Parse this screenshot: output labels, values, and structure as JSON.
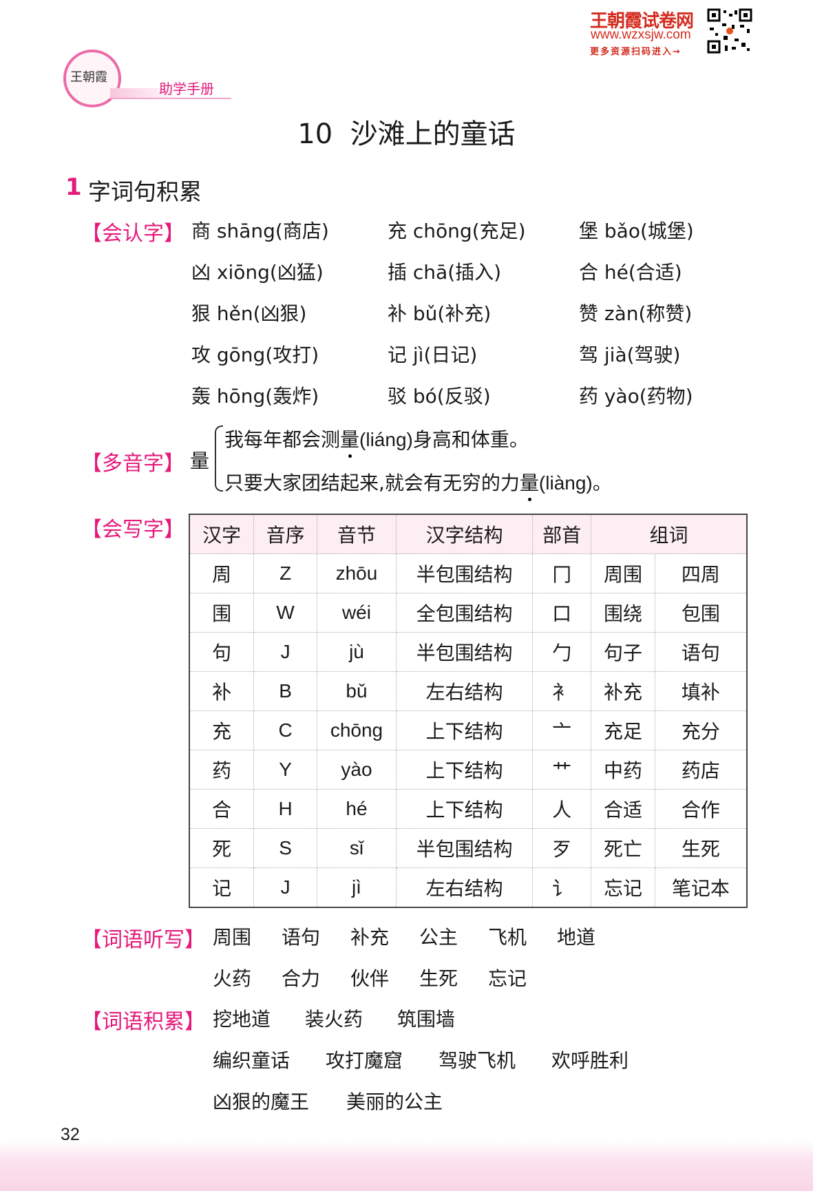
{
  "header": {
    "brand": "王朝霞试卷网",
    "url": "www.wzxsjw.com",
    "more": "更多资源扫码进入→",
    "logo_text": "王朝霞",
    "book": "助学手册"
  },
  "title": "10  沙滩上的童话",
  "section": {
    "number": "1",
    "title": "字词句积累"
  },
  "recognize": {
    "label": "【会认字】",
    "items": [
      "商 shāng(商店)",
      "充 chōng(充足)",
      "堡 bǎo(城堡)",
      "凶 xiōng(凶猛)",
      "插 chā(插入)",
      "合 hé(合适)",
      "狠 hěn(凶狠)",
      "补 bǔ(补充)",
      "赞 zàn(称赞)",
      "攻 gōng(攻打)",
      "记 jì(日记)",
      "驾 jià(驾驶)",
      "轰 hōng(轰炸)",
      "驳 bó(反驳)",
      "药 yào(药物)"
    ]
  },
  "polyphone": {
    "label": "【多音字】",
    "char": "量",
    "line1": {
      "before": "我每年都会测",
      "char": "量",
      "after": "(liáng)身高和体重。"
    },
    "line2": {
      "before": "只要大家团结起来,就会有无穷的力",
      "char": "量",
      "after": "(liàng)。"
    }
  },
  "write": {
    "label": "【会写字】",
    "headers": [
      "汉字",
      "音序",
      "音节",
      "汉字结构",
      "部首",
      "组词"
    ],
    "rows": [
      [
        "周",
        "Z",
        "zhōu",
        "半包围结构",
        "冂",
        "周围",
        "四周"
      ],
      [
        "围",
        "W",
        "wéi",
        "全包围结构",
        "口",
        "围绕",
        "包围"
      ],
      [
        "句",
        "J",
        "jù",
        "半包围结构",
        "勹",
        "句子",
        "语句"
      ],
      [
        "补",
        "B",
        "bǔ",
        "左右结构",
        "衤",
        "补充",
        "填补"
      ],
      [
        "充",
        "C",
        "chōng",
        "上下结构",
        "亠",
        "充足",
        "充分"
      ],
      [
        "药",
        "Y",
        "yào",
        "上下结构",
        "艹",
        "中药",
        "药店"
      ],
      [
        "合",
        "H",
        "hé",
        "上下结构",
        "人",
        "合适",
        "合作"
      ],
      [
        "死",
        "S",
        "sǐ",
        "半包围结构",
        "歹",
        "死亡",
        "生死"
      ],
      [
        "记",
        "J",
        "jì",
        "左右结构",
        "讠",
        "忘记",
        "笔记本"
      ]
    ]
  },
  "dictation": {
    "label": "【词语听写】",
    "lines": [
      [
        "周围",
        "语句",
        "补充",
        "公主",
        "飞机",
        "地道"
      ],
      [
        "火药",
        "合力",
        "伙伴",
        "生死",
        "忘记"
      ]
    ]
  },
  "accumulate": {
    "label": "【词语积累】",
    "lines": [
      [
        "挖地道",
        "装火药",
        "筑围墙"
      ],
      [
        "编织童话",
        "攻打魔窟",
        "驾驶飞机",
        "欢呼胜利"
      ],
      [
        "凶狠的魔王",
        "美丽的公主"
      ]
    ]
  },
  "page_number": "32",
  "colors": {
    "accent": "#e5197a",
    "brand": "#d42a1e",
    "table_header": "#fdeef4"
  }
}
